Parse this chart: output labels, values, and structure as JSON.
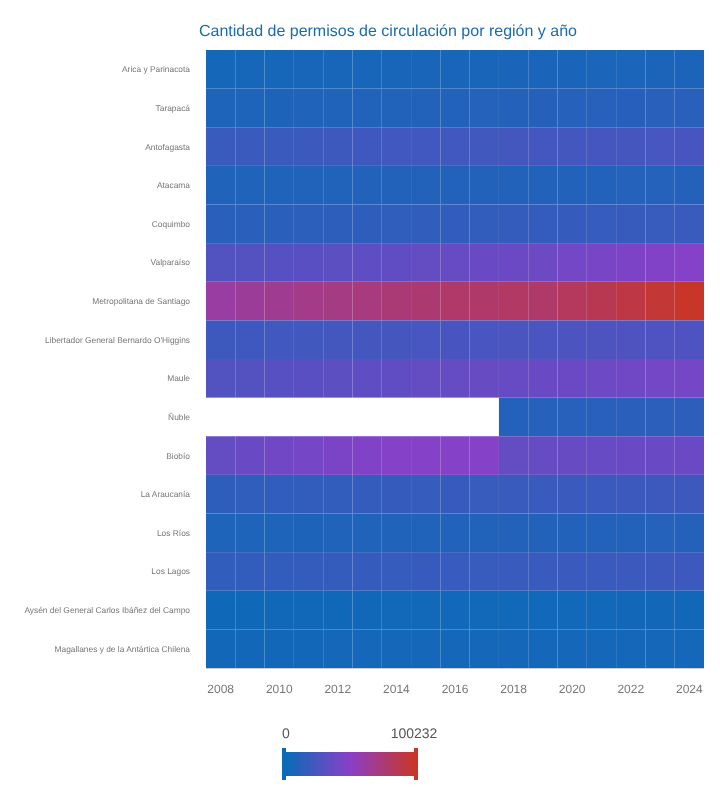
{
  "chart_data": {
    "type": "heatmap",
    "title": "Cantidad de permisos de circulación por región y año",
    "categories": [
      "2008",
      null,
      "2010",
      null,
      "2012",
      null,
      "2014",
      null,
      "2016",
      null,
      "2018",
      null,
      "2020",
      null,
      "2022",
      null,
      "2024"
    ],
    "y_categories": [
      "Arica y Parinacota",
      "Tarapacá",
      "Antofagasta",
      "Atacama",
      "Coquimbo",
      "Valparaíso",
      "Metropolitana de Santiago",
      "Libertador General Bernardo O'Higgins",
      "Maule",
      "Ñuble",
      "Biobío",
      "La Araucanía",
      "Los Ríos",
      "Los Lagos",
      "Aysén del General Carlos Ibáñez del Campo",
      "Magallanes y de la Antártica Chilena"
    ],
    "cells": [
      [
        4000,
        4200,
        4400,
        4600,
        4800,
        5000,
        5200,
        5400,
        5500,
        5600,
        5800,
        5900,
        6000,
        6200,
        6400,
        6600,
        6800
      ],
      [
        7000,
        7300,
        7600,
        7900,
        8200,
        8500,
        8800,
        9100,
        9400,
        9700,
        10000,
        10300,
        10600,
        10900,
        11200,
        11600,
        12000
      ],
      [
        18000,
        18500,
        19000,
        19500,
        20000,
        20500,
        21000,
        21000,
        21500,
        21500,
        22000,
        22000,
        22500,
        23000,
        23000,
        23500,
        24000
      ],
      [
        8000,
        8200,
        8400,
        8600,
        8800,
        9000,
        9200,
        9400,
        9500,
        9600,
        9400,
        9200,
        9300,
        9500,
        9700,
        9800,
        10000
      ],
      [
        12000,
        12400,
        12800,
        13200,
        13600,
        14000,
        14400,
        14800,
        15200,
        15600,
        16000,
        16000,
        16400,
        16800,
        17200,
        17600,
        18000
      ],
      [
        28000,
        29000,
        30000,
        31000,
        32000,
        33000,
        34000,
        35000,
        36000,
        37000,
        38000,
        39000,
        41000,
        43000,
        45000,
        46500,
        48000
      ],
      [
        62000,
        65000,
        68000,
        70000,
        72000,
        74000,
        76000,
        78000,
        80000,
        80000,
        82000,
        80000,
        84000,
        88000,
        92000,
        96000,
        100232
      ],
      [
        20000,
        20500,
        21000,
        21500,
        22000,
        22500,
        23000,
        23500,
        24000,
        24500,
        25000,
        25000,
        25500,
        26000,
        26500,
        27000,
        27000
      ],
      [
        28000,
        29000,
        30000,
        31000,
        32000,
        33000,
        34000,
        35000,
        35500,
        36000,
        36500,
        37000,
        38000,
        39000,
        40000,
        41000,
        42000
      ],
      [
        null,
        null,
        null,
        null,
        null,
        null,
        null,
        null,
        null,
        null,
        10000,
        10500,
        11000,
        11500,
        12500,
        13000,
        14000
      ],
      [
        35000,
        37000,
        40000,
        42000,
        44000,
        46000,
        48000,
        48000,
        48000,
        48000,
        35000,
        35500,
        36000,
        36500,
        37000,
        37500,
        38000
      ],
      [
        14000,
        14400,
        14800,
        15200,
        15600,
        16000,
        16400,
        16800,
        17200,
        17600,
        18000,
        18000,
        18400,
        18800,
        19200,
        19600,
        20000
      ],
      [
        7000,
        7200,
        7400,
        7600,
        7800,
        8000,
        8200,
        8400,
        8600,
        8800,
        9000,
        9000,
        9200,
        9400,
        9600,
        9800,
        10000
      ],
      [
        15000,
        15300,
        15600,
        15900,
        16200,
        16500,
        16800,
        17100,
        17400,
        17700,
        18000,
        18000,
        18400,
        18800,
        19200,
        19600,
        20000
      ],
      [
        2000,
        2100,
        2200,
        2300,
        2400,
        2500,
        2600,
        2600,
        2700,
        2700,
        2800,
        2800,
        2900,
        2900,
        3000,
        3000,
        3000
      ],
      [
        3000,
        3100,
        3200,
        3300,
        3400,
        3500,
        3500,
        3600,
        3600,
        3700,
        3700,
        3700,
        3800,
        3800,
        3900,
        4000,
        4000
      ]
    ],
    "clim": [
      0,
      100232
    ],
    "cticks": [
      0,
      100232
    ]
  }
}
